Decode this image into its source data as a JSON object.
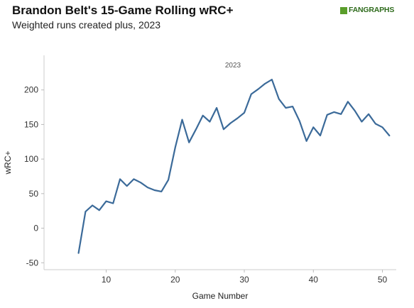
{
  "header": {
    "title": "Brandon Belt's 15-Game Rolling wRC+",
    "subtitle": "Weighted runs created plus, 2023",
    "logo_text": "FANGRAPHS"
  },
  "chart_data": {
    "type": "line",
    "panel_label": "2023",
    "xlabel": "Game Number",
    "ylabel": "wRC+",
    "xlim": [
      1,
      52
    ],
    "ylim": [
      -60,
      250
    ],
    "xticks": [
      10,
      20,
      30,
      40,
      50
    ],
    "yticks": [
      -50,
      0,
      50,
      100,
      150,
      200
    ],
    "line_color": "#3b6a99",
    "series": [
      {
        "x": [
          6,
          7,
          8,
          9,
          10,
          11,
          12,
          13,
          14,
          15,
          16,
          17,
          18,
          19,
          20,
          21,
          22,
          23,
          24,
          25,
          26,
          27,
          28,
          29,
          30,
          31,
          32,
          33,
          34,
          35,
          36,
          37,
          38,
          39,
          40,
          41,
          42,
          43,
          44,
          45,
          46,
          47,
          48,
          49,
          50,
          51
        ],
        "y": [
          -36,
          24,
          33,
          26,
          39,
          36,
          71,
          61,
          71,
          66,
          59,
          55,
          53,
          70,
          117,
          157,
          124,
          143,
          163,
          154,
          174,
          143,
          152,
          159,
          167,
          194,
          201,
          209,
          215,
          187,
          174,
          176,
          155,
          126,
          146,
          134,
          164,
          168,
          165,
          183,
          170,
          154,
          165,
          151,
          146,
          134
        ]
      }
    ]
  }
}
